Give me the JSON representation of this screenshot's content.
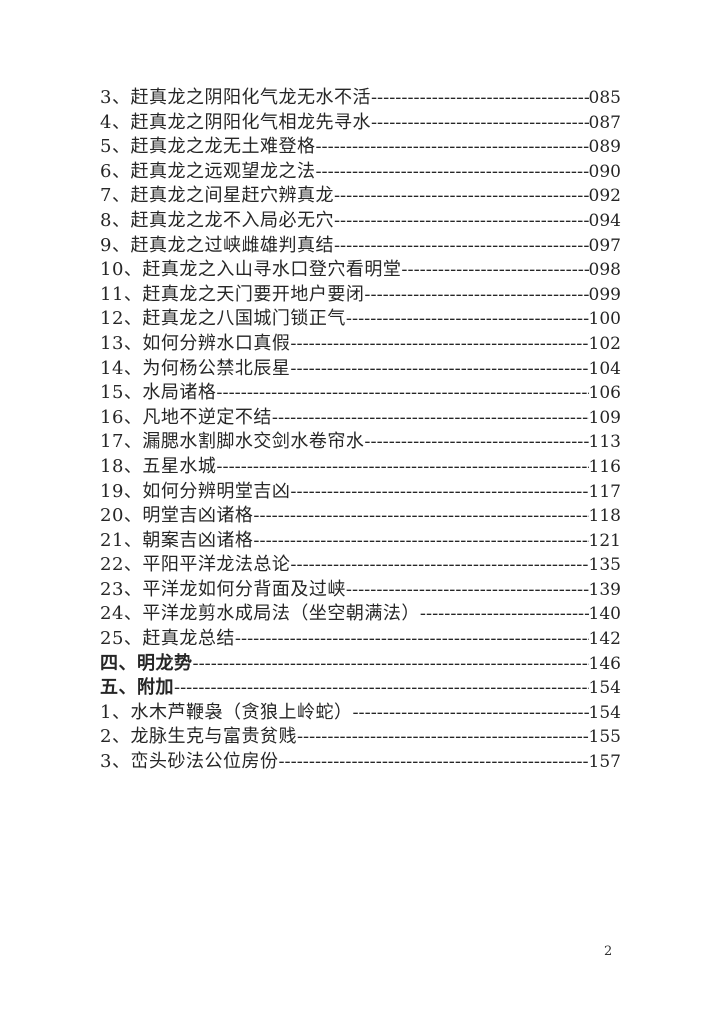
{
  "page": {
    "footer_page_number": "2",
    "background_color": "#ffffff",
    "text_color": "#262626"
  },
  "toc": {
    "leader_char": "-",
    "entries": [
      {
        "label": "3、赶真龙之阴阳化气龙无水不活",
        "page": "085",
        "bold": false
      },
      {
        "label": "4、赶真龙之阴阳化气相龙先寻水",
        "page": "087",
        "bold": false
      },
      {
        "label": "5、赶真龙之龙无土难登格",
        "page": "089",
        "bold": false
      },
      {
        "label": "6、赶真龙之远观望龙之法",
        "page": "090",
        "bold": false
      },
      {
        "label": "7、赶真龙之间星赶穴辨真龙",
        "page": "092",
        "bold": false
      },
      {
        "label": "8、赶真龙之龙不入局必无穴",
        "page": "094",
        "bold": false
      },
      {
        "label": "9、赶真龙之过峡雌雄判真结",
        "page": "097",
        "bold": false
      },
      {
        "label": "10、赶真龙之入山寻水口登穴看明堂",
        "page": "098",
        "bold": false
      },
      {
        "label": "11、赶真龙之天门要开地户要闭",
        "page": "099",
        "bold": false
      },
      {
        "label": "12、赶真龙之八国城门锁正气",
        "page": "100",
        "bold": false
      },
      {
        "label": "13、如何分辨水口真假",
        "page": "102",
        "bold": false
      },
      {
        "label": "14、为何杨公禁北辰星",
        "page": "104",
        "bold": false
      },
      {
        "label": "15、水局诸格",
        "page": "106",
        "bold": false
      },
      {
        "label": "16、凡地不逆定不结",
        "page": "109",
        "bold": false
      },
      {
        "label": "17、漏腮水割脚水交剑水卷帘水",
        "page": "113",
        "bold": false
      },
      {
        "label": "18、五星水城",
        "page": "116",
        "bold": false
      },
      {
        "label": "19、如何分辨明堂吉凶",
        "page": "117",
        "bold": false
      },
      {
        "label": "20、明堂吉凶诸格",
        "page": "118",
        "bold": false
      },
      {
        "label": "21、朝案吉凶诸格",
        "page": "121",
        "bold": false
      },
      {
        "label": "22、平阳平洋龙法总论",
        "page": "135",
        "bold": false
      },
      {
        "label": "23、平洋龙如何分背面及过峡",
        "page": "139",
        "bold": false
      },
      {
        "label": "24、平洋龙剪水成局法（坐空朝满法）",
        "page": "140",
        "bold": false
      },
      {
        "label": "25、赶真龙总结",
        "page": "142",
        "bold": false
      },
      {
        "label": "四、明龙势",
        "page": "146",
        "bold": true
      },
      {
        "label": "五、附加",
        "page": "154",
        "bold": true
      },
      {
        "label": "1、水木芦鞭袅（贪狼上岭蛇）",
        "page": "154",
        "bold": false
      },
      {
        "label": "2、龙脉生克与富贵贫贱",
        "page": "155",
        "bold": false
      },
      {
        "label": "3、峦头砂法公位房份",
        "page": "157",
        "bold": false
      }
    ]
  }
}
